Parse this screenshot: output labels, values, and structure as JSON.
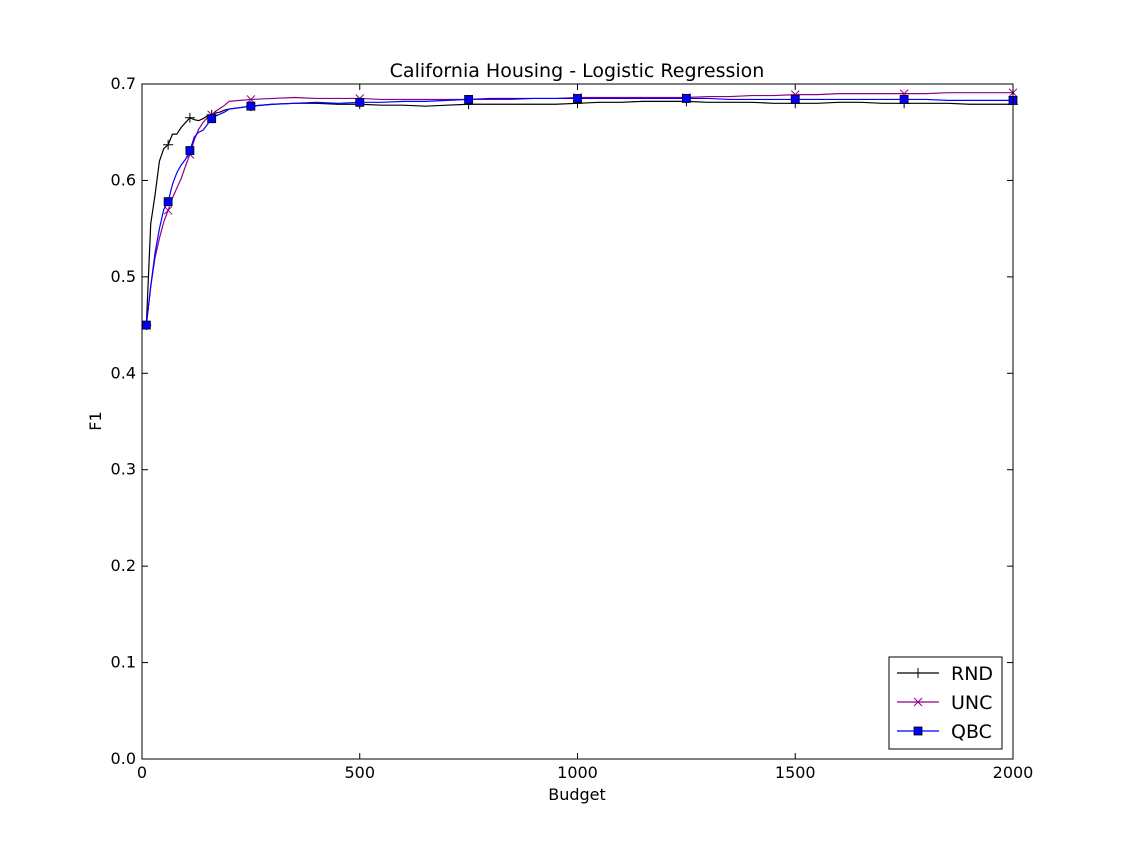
{
  "chart_data": {
    "type": "line",
    "title": "California Housing - Logistic Regression",
    "xlabel": "Budget",
    "ylabel": "F1",
    "xlim": [
      0,
      2000
    ],
    "ylim": [
      0.0,
      0.7
    ],
    "xticks": [
      0,
      500,
      1000,
      1500,
      2000
    ],
    "yticks": [
      0.0,
      0.1,
      0.2,
      0.3,
      0.4,
      0.5,
      0.6,
      0.7
    ],
    "xtick_labels": [
      "0",
      "500",
      "1000",
      "1500",
      "2000"
    ],
    "ytick_labels": [
      "0.0",
      "0.1",
      "0.2",
      "0.3",
      "0.4",
      "0.5",
      "0.6",
      "0.7"
    ],
    "grid": false,
    "legend_position": "lower-right",
    "series": [
      {
        "name": "RND",
        "color": "#000000",
        "marker": "plus",
        "x": [
          10,
          20,
          30,
          40,
          50,
          60,
          70,
          80,
          90,
          100,
          110,
          120,
          130,
          140,
          150,
          160,
          170,
          180,
          190,
          200,
          250,
          300,
          350,
          400,
          450,
          500,
          550,
          600,
          650,
          700,
          750,
          800,
          850,
          900,
          950,
          1000,
          1050,
          1100,
          1150,
          1200,
          1250,
          1300,
          1350,
          1400,
          1450,
          1500,
          1550,
          1600,
          1650,
          1700,
          1750,
          1800,
          1850,
          1900,
          1950,
          2000
        ],
        "y": [
          0.45,
          0.555,
          0.585,
          0.62,
          0.633,
          0.637,
          0.648,
          0.648,
          0.655,
          0.66,
          0.665,
          0.663,
          0.662,
          0.664,
          0.667,
          0.668,
          0.67,
          0.671,
          0.673,
          0.674,
          0.677,
          0.679,
          0.68,
          0.68,
          0.679,
          0.679,
          0.678,
          0.678,
          0.677,
          0.678,
          0.679,
          0.679,
          0.679,
          0.679,
          0.679,
          0.68,
          0.681,
          0.681,
          0.682,
          0.682,
          0.682,
          0.681,
          0.681,
          0.681,
          0.68,
          0.68,
          0.68,
          0.681,
          0.681,
          0.68,
          0.68,
          0.68,
          0.68,
          0.679,
          0.679,
          0.679
        ],
        "marker_every": 5
      },
      {
        "name": "UNC",
        "color": "#8b008b",
        "marker": "x",
        "x": [
          10,
          20,
          30,
          40,
          50,
          60,
          70,
          80,
          90,
          100,
          110,
          120,
          130,
          140,
          150,
          160,
          170,
          180,
          190,
          200,
          250,
          300,
          350,
          400,
          450,
          500,
          550,
          600,
          650,
          700,
          750,
          800,
          850,
          900,
          950,
          1000,
          1050,
          1100,
          1150,
          1200,
          1250,
          1300,
          1350,
          1400,
          1450,
          1500,
          1550,
          1600,
          1650,
          1700,
          1750,
          1800,
          1850,
          1900,
          1950,
          2000
        ],
        "y": [
          0.45,
          0.49,
          0.52,
          0.54,
          0.557,
          0.569,
          0.582,
          0.592,
          0.602,
          0.615,
          0.627,
          0.642,
          0.653,
          0.66,
          0.665,
          0.668,
          0.672,
          0.675,
          0.678,
          0.682,
          0.684,
          0.685,
          0.686,
          0.685,
          0.685,
          0.685,
          0.684,
          0.684,
          0.684,
          0.684,
          0.684,
          0.684,
          0.684,
          0.685,
          0.685,
          0.686,
          0.686,
          0.686,
          0.686,
          0.686,
          0.686,
          0.687,
          0.687,
          0.688,
          0.688,
          0.689,
          0.689,
          0.69,
          0.69,
          0.69,
          0.69,
          0.69,
          0.691,
          0.691,
          0.691,
          0.691
        ],
        "marker_every": 5
      },
      {
        "name": "QBC",
        "color": "#0000ff",
        "marker": "square",
        "x": [
          10,
          20,
          30,
          40,
          50,
          60,
          70,
          80,
          90,
          100,
          110,
          120,
          130,
          140,
          150,
          160,
          170,
          180,
          190,
          200,
          250,
          300,
          350,
          400,
          450,
          500,
          550,
          600,
          650,
          700,
          750,
          800,
          850,
          900,
          950,
          1000,
          1050,
          1100,
          1150,
          1200,
          1250,
          1300,
          1350,
          1400,
          1450,
          1500,
          1550,
          1600,
          1650,
          1700,
          1750,
          1800,
          1850,
          1900,
          1950,
          2000
        ],
        "y": [
          0.45,
          0.49,
          0.525,
          0.55,
          0.57,
          0.578,
          0.596,
          0.608,
          0.616,
          0.622,
          0.631,
          0.645,
          0.65,
          0.652,
          0.658,
          0.664,
          0.667,
          0.669,
          0.671,
          0.674,
          0.677,
          0.679,
          0.68,
          0.681,
          0.68,
          0.681,
          0.681,
          0.682,
          0.682,
          0.683,
          0.684,
          0.685,
          0.685,
          0.685,
          0.685,
          0.685,
          0.685,
          0.685,
          0.685,
          0.685,
          0.685,
          0.685,
          0.684,
          0.684,
          0.684,
          0.684,
          0.684,
          0.684,
          0.684,
          0.684,
          0.684,
          0.684,
          0.683,
          0.683,
          0.683,
          0.683
        ],
        "marker_every": 5
      }
    ]
  }
}
